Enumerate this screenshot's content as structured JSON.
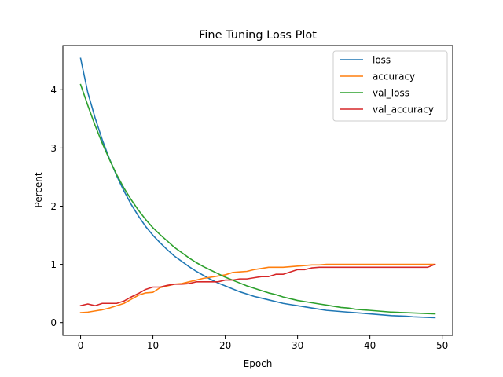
{
  "chart_data": {
    "type": "line",
    "title": "Fine Tuning Loss Plot",
    "xlabel": "Epoch",
    "ylabel": "Percent",
    "xlim": [
      -2.45,
      51.45
    ],
    "ylim": [
      -0.22,
      4.76
    ],
    "xticks": [
      0,
      10,
      20,
      30,
      40,
      50
    ],
    "yticks": [
      0,
      1,
      2,
      3,
      4
    ],
    "grid": false,
    "legend_position": "top-right",
    "x": [
      0,
      1,
      2,
      3,
      4,
      5,
      6,
      7,
      8,
      9,
      10,
      11,
      12,
      13,
      14,
      15,
      16,
      17,
      18,
      19,
      20,
      21,
      22,
      23,
      24,
      25,
      26,
      27,
      28,
      29,
      30,
      31,
      32,
      33,
      34,
      35,
      36,
      37,
      38,
      39,
      40,
      41,
      42,
      43,
      44,
      45,
      46,
      47,
      48,
      49
    ],
    "series": [
      {
        "name": "loss",
        "color": "#1f77b4",
        "values": [
          4.54,
          3.95,
          3.52,
          3.14,
          2.81,
          2.52,
          2.26,
          2.03,
          1.83,
          1.65,
          1.5,
          1.37,
          1.25,
          1.14,
          1.05,
          0.96,
          0.88,
          0.81,
          0.74,
          0.68,
          0.63,
          0.58,
          0.53,
          0.49,
          0.45,
          0.42,
          0.39,
          0.36,
          0.33,
          0.31,
          0.29,
          0.27,
          0.25,
          0.23,
          0.21,
          0.2,
          0.19,
          0.18,
          0.17,
          0.16,
          0.15,
          0.14,
          0.13,
          0.12,
          0.115,
          0.11,
          0.1,
          0.095,
          0.09,
          0.085
        ]
      },
      {
        "name": "accuracy",
        "color": "#ff7f0e",
        "values": [
          0.17,
          0.18,
          0.2,
          0.22,
          0.25,
          0.29,
          0.33,
          0.4,
          0.47,
          0.51,
          0.52,
          0.6,
          0.63,
          0.66,
          0.67,
          0.7,
          0.73,
          0.76,
          0.78,
          0.8,
          0.82,
          0.86,
          0.87,
          0.88,
          0.91,
          0.93,
          0.95,
          0.95,
          0.95,
          0.96,
          0.97,
          0.98,
          0.99,
          0.99,
          1.0,
          1.0,
          1.0,
          1.0,
          1.0,
          1.0,
          1.0,
          1.0,
          1.0,
          1.0,
          1.0,
          1.0,
          1.0,
          1.0,
          1.0,
          1.0
        ]
      },
      {
        "name": "val_loss",
        "color": "#2ca02c",
        "values": [
          4.09,
          3.73,
          3.39,
          3.08,
          2.8,
          2.54,
          2.31,
          2.11,
          1.93,
          1.77,
          1.63,
          1.51,
          1.4,
          1.29,
          1.2,
          1.11,
          1.03,
          0.96,
          0.9,
          0.84,
          0.78,
          0.73,
          0.68,
          0.63,
          0.59,
          0.55,
          0.51,
          0.48,
          0.44,
          0.41,
          0.38,
          0.36,
          0.34,
          0.32,
          0.3,
          0.28,
          0.26,
          0.25,
          0.23,
          0.22,
          0.21,
          0.2,
          0.19,
          0.18,
          0.175,
          0.17,
          0.165,
          0.16,
          0.155,
          0.15
        ]
      },
      {
        "name": "val_accuracy",
        "color": "#d62728",
        "values": [
          0.29,
          0.32,
          0.29,
          0.33,
          0.33,
          0.33,
          0.37,
          0.44,
          0.5,
          0.57,
          0.61,
          0.61,
          0.64,
          0.66,
          0.66,
          0.67,
          0.7,
          0.7,
          0.7,
          0.7,
          0.73,
          0.73,
          0.75,
          0.75,
          0.77,
          0.79,
          0.79,
          0.83,
          0.83,
          0.87,
          0.91,
          0.91,
          0.94,
          0.95,
          0.95,
          0.95,
          0.95,
          0.95,
          0.95,
          0.95,
          0.95,
          0.95,
          0.95,
          0.95,
          0.95,
          0.95,
          0.95,
          0.95,
          0.95,
          1.0
        ]
      }
    ]
  }
}
